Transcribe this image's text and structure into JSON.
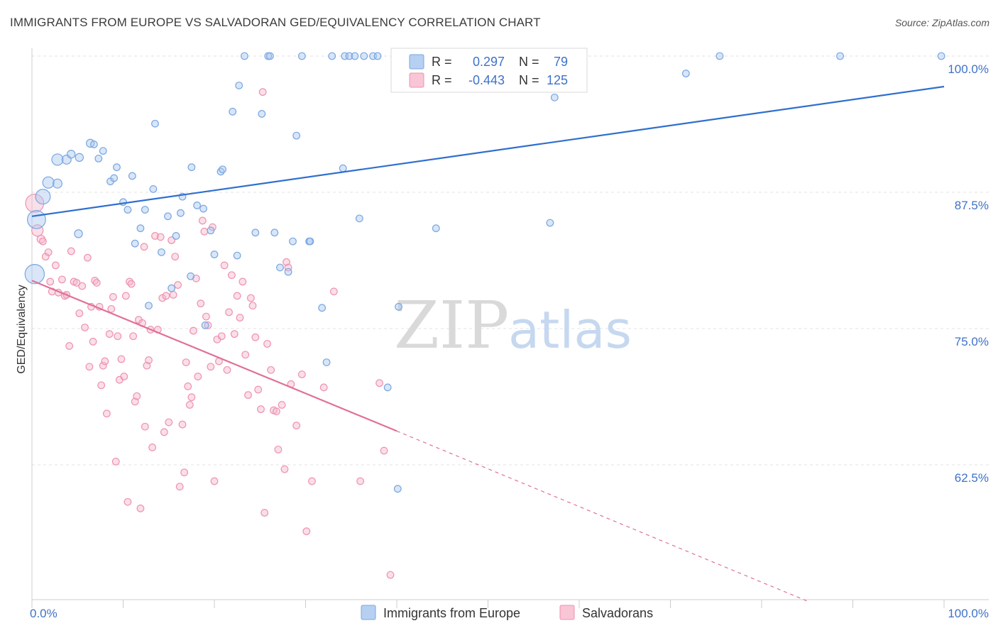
{
  "title": "IMMIGRANTS FROM EUROPE VS SALVADORAN GED/EQUIVALENCY CORRELATION CHART",
  "source": "Source: ZipAtlas.com",
  "watermark": {
    "zip": "ZIP",
    "atlas": "atlas"
  },
  "colors": {
    "blue_fill": "#a9c7ef",
    "blue_stroke": "#7aa6e0",
    "blue_line": "#2f6fce",
    "pink_fill": "#f5b8cb",
    "pink_stroke": "#ee93b0",
    "pink_line": "#e0709a",
    "tick_text": "#3f72c8",
    "grid": "#e3e3e3"
  },
  "legend": {
    "rows": [
      {
        "r_label": "R =",
        "r_value": "0.297",
        "n_label": "N =",
        "n_value": "79"
      },
      {
        "r_label": "R =",
        "r_value": "-0.443",
        "n_label": "N =",
        "n_value": "125"
      }
    ]
  },
  "chart_data": {
    "type": "scatter",
    "title": "IMMIGRANTS FROM EUROPE VS SALVADORAN GED/EQUIVALENCY CORRELATION CHART",
    "xlabel": "",
    "ylabel": "GED/Equivalency",
    "x_ticks": [
      "0.0%",
      "100.0%"
    ],
    "y_ticks": [
      "100.0%",
      "87.5%",
      "75.0%",
      "62.5%"
    ],
    "y_tick_values": [
      100.0,
      87.5,
      75.0,
      62.5
    ],
    "xlim": [
      0,
      100
    ],
    "ylim": [
      49.5,
      101.5
    ],
    "grid": true,
    "legend_position": "bottom",
    "series": [
      {
        "name": "Immigrants from Europe",
        "color": "#a9c7ef",
        "trend": {
          "x0": 0,
          "y0": 85.3,
          "x1": 100,
          "y1": 97.2
        },
        "points": [
          [
            0.3,
            80.0,
            1.7
          ],
          [
            0.5,
            85.0,
            1.6
          ],
          [
            1.2,
            87.1,
            1.3
          ],
          [
            1.8,
            88.4,
            1.0
          ],
          [
            2.8,
            88.3,
            0.8
          ],
          [
            2.8,
            90.5,
            1.0
          ],
          [
            3.8,
            90.5,
            0.8
          ],
          [
            4.3,
            91.0,
            0.7
          ],
          [
            5.2,
            90.7,
            0.7
          ],
          [
            5.1,
            83.7,
            0.7
          ],
          [
            6.4,
            92.0,
            0.7
          ],
          [
            6.8,
            91.9,
            0.6
          ],
          [
            7.3,
            90.6,
            0.6
          ],
          [
            7.8,
            91.3,
            0.6
          ],
          [
            8.6,
            88.5,
            0.6
          ],
          [
            9.0,
            88.8,
            0.6
          ],
          [
            9.3,
            89.8,
            0.6
          ],
          [
            10.0,
            86.6,
            0.6
          ],
          [
            10.5,
            85.9,
            0.6
          ],
          [
            11.0,
            89.0,
            0.6
          ],
          [
            11.3,
            82.8,
            0.6
          ],
          [
            11.9,
            84.2,
            0.6
          ],
          [
            12.4,
            85.9,
            0.6
          ],
          [
            12.8,
            77.1,
            0.6
          ],
          [
            13.3,
            87.8,
            0.6
          ],
          [
            13.5,
            93.8,
            0.6
          ],
          [
            14.2,
            82.0,
            0.6
          ],
          [
            14.9,
            85.3,
            0.6
          ],
          [
            15.3,
            78.7,
            0.6
          ],
          [
            15.8,
            83.5,
            0.6
          ],
          [
            16.3,
            85.6,
            0.6
          ],
          [
            16.5,
            87.1,
            0.6
          ],
          [
            17.4,
            79.8,
            0.6
          ],
          [
            17.5,
            89.8,
            0.6
          ],
          [
            18.1,
            86.3,
            0.6
          ],
          [
            18.8,
            86.0,
            0.6
          ],
          [
            19.0,
            75.3,
            0.6
          ],
          [
            19.6,
            84.0,
            0.6
          ],
          [
            20.0,
            81.8,
            0.6
          ],
          [
            20.7,
            89.4,
            0.6
          ],
          [
            20.9,
            89.6,
            0.6
          ],
          [
            22.0,
            94.9,
            0.6
          ],
          [
            22.5,
            81.7,
            0.6
          ],
          [
            22.7,
            97.3,
            0.6
          ],
          [
            23.3,
            100.0,
            0.6
          ],
          [
            24.5,
            83.8,
            0.6
          ],
          [
            25.2,
            94.7,
            0.6
          ],
          [
            25.9,
            100.0,
            0.6
          ],
          [
            26.1,
            100.0,
            0.6
          ],
          [
            26.6,
            83.8,
            0.6
          ],
          [
            27.2,
            80.6,
            0.6
          ],
          [
            28.1,
            80.2,
            0.6
          ],
          [
            28.6,
            83.0,
            0.6
          ],
          [
            29.0,
            92.7,
            0.6
          ],
          [
            29.6,
            100.0,
            0.6
          ],
          [
            30.4,
            83.0,
            0.6
          ],
          [
            30.5,
            83.0,
            0.6
          ],
          [
            31.8,
            76.9,
            0.6
          ],
          [
            32.3,
            71.9,
            0.6
          ],
          [
            32.9,
            100.0,
            0.6
          ],
          [
            34.1,
            89.7,
            0.6
          ],
          [
            34.3,
            100.0,
            0.6
          ],
          [
            34.8,
            100.0,
            0.6
          ],
          [
            35.4,
            100.0,
            0.6
          ],
          [
            35.9,
            85.1,
            0.6
          ],
          [
            36.4,
            100.0,
            0.6
          ],
          [
            37.4,
            100.0,
            0.6
          ],
          [
            37.9,
            100.0,
            0.6
          ],
          [
            39.0,
            69.6,
            0.6
          ],
          [
            40.2,
            77.0,
            0.6
          ],
          [
            40.1,
            60.3,
            0.6
          ],
          [
            44.3,
            84.2,
            0.6
          ],
          [
            47.6,
            100.0,
            0.6
          ],
          [
            56.8,
            84.7,
            0.6
          ],
          [
            57.3,
            96.2,
            0.6
          ],
          [
            71.7,
            98.4,
            0.6
          ],
          [
            75.4,
            100.0,
            0.6
          ],
          [
            88.6,
            100.0,
            0.6
          ],
          [
            99.7,
            100.0,
            0.6
          ]
        ]
      },
      {
        "name": "Salvadorans",
        "color": "#f5b8cb",
        "trend": {
          "x0": 0,
          "y0": 79.4,
          "x1": 40,
          "y1": 65.6,
          "dash_to_x": 85,
          "dash_to_y": 50.0
        },
        "points": [
          [
            0.3,
            86.5,
            1.6
          ],
          [
            0.6,
            84.0,
            1.0
          ],
          [
            1.0,
            83.2,
            0.7
          ],
          [
            1.2,
            83.0,
            0.6
          ],
          [
            1.5,
            81.6,
            0.6
          ],
          [
            1.8,
            82.0,
            0.6
          ],
          [
            2.0,
            79.3,
            0.6
          ],
          [
            2.2,
            78.4,
            0.6
          ],
          [
            2.6,
            80.8,
            0.6
          ],
          [
            2.9,
            78.3,
            0.6
          ],
          [
            3.3,
            79.5,
            0.6
          ],
          [
            3.6,
            78.0,
            0.6
          ],
          [
            3.8,
            78.1,
            0.6
          ],
          [
            4.1,
            73.4,
            0.6
          ],
          [
            4.3,
            82.1,
            0.6
          ],
          [
            4.6,
            79.3,
            0.6
          ],
          [
            4.9,
            79.2,
            0.6
          ],
          [
            5.2,
            76.4,
            0.6
          ],
          [
            5.5,
            78.9,
            0.6
          ],
          [
            5.8,
            75.1,
            0.6
          ],
          [
            6.1,
            81.5,
            0.6
          ],
          [
            6.3,
            71.5,
            0.6
          ],
          [
            6.5,
            77.0,
            0.6
          ],
          [
            6.7,
            73.8,
            0.6
          ],
          [
            6.9,
            79.4,
            0.6
          ],
          [
            7.1,
            79.2,
            0.6
          ],
          [
            7.4,
            77.0,
            0.6
          ],
          [
            7.6,
            69.8,
            0.6
          ],
          [
            7.8,
            71.6,
            0.6
          ],
          [
            8.0,
            72.0,
            0.6
          ],
          [
            8.2,
            67.2,
            0.6
          ],
          [
            8.5,
            74.5,
            0.6
          ],
          [
            8.7,
            76.8,
            0.6
          ],
          [
            8.9,
            77.9,
            0.6
          ],
          [
            9.2,
            62.8,
            0.6
          ],
          [
            9.4,
            74.3,
            0.6
          ],
          [
            9.6,
            70.3,
            0.6
          ],
          [
            9.8,
            72.2,
            0.6
          ],
          [
            10.1,
            70.6,
            0.6
          ],
          [
            10.3,
            78.0,
            0.6
          ],
          [
            10.5,
            59.1,
            0.6
          ],
          [
            10.7,
            79.3,
            0.6
          ],
          [
            10.9,
            79.1,
            0.6
          ],
          [
            11.1,
            74.3,
            0.6
          ],
          [
            11.3,
            68.3,
            0.6
          ],
          [
            11.5,
            68.8,
            0.6
          ],
          [
            11.7,
            75.8,
            0.6
          ],
          [
            11.9,
            58.5,
            0.6
          ],
          [
            12.1,
            75.5,
            0.6
          ],
          [
            12.3,
            82.5,
            0.6
          ],
          [
            12.4,
            66.0,
            0.6
          ],
          [
            12.6,
            71.6,
            0.6
          ],
          [
            12.8,
            72.1,
            0.6
          ],
          [
            13.0,
            74.9,
            0.6
          ],
          [
            13.2,
            64.1,
            0.6
          ],
          [
            13.5,
            83.5,
            0.6
          ],
          [
            13.8,
            74.9,
            0.6
          ],
          [
            14.1,
            83.4,
            0.6
          ],
          [
            14.3,
            77.8,
            0.6
          ],
          [
            14.5,
            65.5,
            0.6
          ],
          [
            14.7,
            78.0,
            0.6
          ],
          [
            15.0,
            66.4,
            0.6
          ],
          [
            15.3,
            83.1,
            0.6
          ],
          [
            15.5,
            78.1,
            0.6
          ],
          [
            15.7,
            81.6,
            0.6
          ],
          [
            16.0,
            79.0,
            0.6
          ],
          [
            16.2,
            60.5,
            0.6
          ],
          [
            16.5,
            66.2,
            0.6
          ],
          [
            16.7,
            61.8,
            0.6
          ],
          [
            16.9,
            71.9,
            0.6
          ],
          [
            17.1,
            69.7,
            0.6
          ],
          [
            17.3,
            68.0,
            0.6
          ],
          [
            17.5,
            68.7,
            0.6
          ],
          [
            17.7,
            74.8,
            0.6
          ],
          [
            18.0,
            79.6,
            0.6
          ],
          [
            18.2,
            70.6,
            0.6
          ],
          [
            18.5,
            77.3,
            0.6
          ],
          [
            18.7,
            84.9,
            0.6
          ],
          [
            18.9,
            83.9,
            0.6
          ],
          [
            19.1,
            76.1,
            0.6
          ],
          [
            19.3,
            75.3,
            0.6
          ],
          [
            19.6,
            71.5,
            0.6
          ],
          [
            19.8,
            84.3,
            0.6
          ],
          [
            20.0,
            61.0,
            0.6
          ],
          [
            20.3,
            74.0,
            0.6
          ],
          [
            20.5,
            72.0,
            0.6
          ],
          [
            20.8,
            74.3,
            0.6
          ],
          [
            21.1,
            80.8,
            0.6
          ],
          [
            21.4,
            71.2,
            0.6
          ],
          [
            21.6,
            76.5,
            0.6
          ],
          [
            21.9,
            79.9,
            0.6
          ],
          [
            22.2,
            74.5,
            0.6
          ],
          [
            22.5,
            78.0,
            0.6
          ],
          [
            22.8,
            76.0,
            0.6
          ],
          [
            23.1,
            79.3,
            0.6
          ],
          [
            23.4,
            72.6,
            0.6
          ],
          [
            23.7,
            68.9,
            0.6
          ],
          [
            24.0,
            77.8,
            0.6
          ],
          [
            24.2,
            77.1,
            0.6
          ],
          [
            24.5,
            74.2,
            0.6
          ],
          [
            24.8,
            69.4,
            0.6
          ],
          [
            25.1,
            67.6,
            0.6
          ],
          [
            25.3,
            96.7,
            0.6
          ],
          [
            25.5,
            58.1,
            0.6
          ],
          [
            25.8,
            73.6,
            0.6
          ],
          [
            26.2,
            71.2,
            0.6
          ],
          [
            26.5,
            67.5,
            0.6
          ],
          [
            26.8,
            67.4,
            0.6
          ],
          [
            27.0,
            63.9,
            0.6
          ],
          [
            27.4,
            68.0,
            0.6
          ],
          [
            27.7,
            62.1,
            0.6
          ],
          [
            27.9,
            81.1,
            0.6
          ],
          [
            28.1,
            80.6,
            0.6
          ],
          [
            28.4,
            69.9,
            0.6
          ],
          [
            29.0,
            66.1,
            0.6
          ],
          [
            29.6,
            70.8,
            0.6
          ],
          [
            30.1,
            56.4,
            0.6
          ],
          [
            30.7,
            61.0,
            0.6
          ],
          [
            32.0,
            69.6,
            0.6
          ],
          [
            33.1,
            78.4,
            0.6
          ],
          [
            36.0,
            61.0,
            0.6
          ],
          [
            38.1,
            70.0,
            0.6
          ],
          [
            38.6,
            63.8,
            0.6
          ],
          [
            39.3,
            52.4,
            0.6
          ]
        ]
      }
    ]
  },
  "bottom_legend": {
    "items": [
      "Immigrants from Europe",
      "Salvadorans"
    ]
  }
}
